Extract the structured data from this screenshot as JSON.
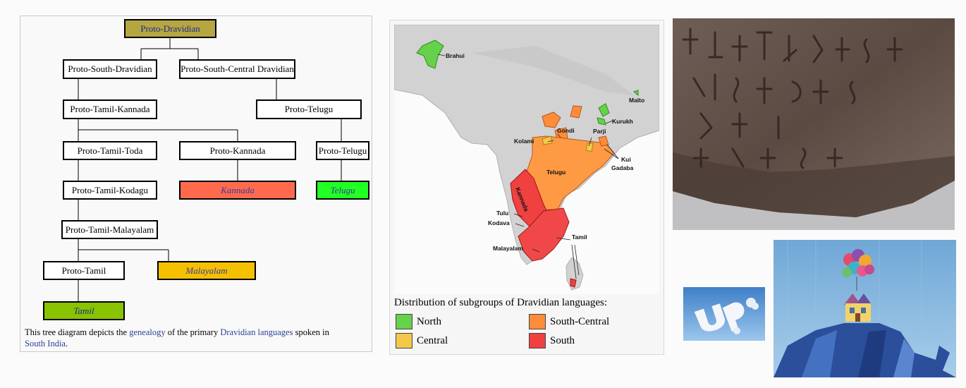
{
  "tree": {
    "nodes": {
      "proto_dravidian": "Proto-Dravidian",
      "proto_south_dravidian": "Proto-South-Dravidian",
      "proto_south_central_dravidian": "Proto-South-Central Dravidian",
      "proto_tamil_kannada": "Proto-Tamil-Kannada",
      "proto_telugu_a": "Proto-Telugu",
      "proto_tamil_toda": "Proto-Tamil-Toda",
      "proto_kannada": "Proto-Kannada",
      "proto_telugu_b": "Proto-Telugu",
      "proto_tamil_kodagu": "Proto-Tamil-Kodagu",
      "kannada": "Kannada",
      "telugu": "Telugu",
      "proto_tamil_malayalam": "Proto-Tamil-Malayalam",
      "proto_tamil": "Proto-Tamil",
      "malayalam": "Malayalam",
      "tamil": "Tamil"
    },
    "caption": {
      "part1": "This tree diagram depicts the ",
      "link1": "genealogy",
      "part2": " of the primary ",
      "link2": "Dravidian languages",
      "part3": " spoken in ",
      "link3": "South India",
      "part4": "."
    }
  },
  "map": {
    "labels": {
      "brahui": "Brahui",
      "malto": "Malto",
      "kurukh": "Kurukh",
      "gondi": "Gondi",
      "kolami": "Kolami",
      "parji": "Parji",
      "kui": "Kui",
      "gadaba": "Gadaba",
      "telugu": "Telugu",
      "kannada": "Kannada",
      "tulu": "Tulu",
      "kodava": "Kodava",
      "tamil": "Tamil",
      "malayalam": "Malayalam"
    },
    "title": "Distribution of subgroups of Dravidian languages:",
    "legend": [
      {
        "label": "North",
        "color": "#66d14a"
      },
      {
        "label": "South-Central",
        "color": "#ff8c3a"
      },
      {
        "label": "Central",
        "color": "#f4c84a"
      },
      {
        "label": "South",
        "color": "#f04040"
      }
    ]
  },
  "colors": {
    "root": "#b5a642",
    "kannada": "#ff6a4d",
    "telugu": "#22ff22",
    "malayalam": "#f5c000",
    "tamil": "#88c400",
    "link": "#2a3f9a"
  }
}
